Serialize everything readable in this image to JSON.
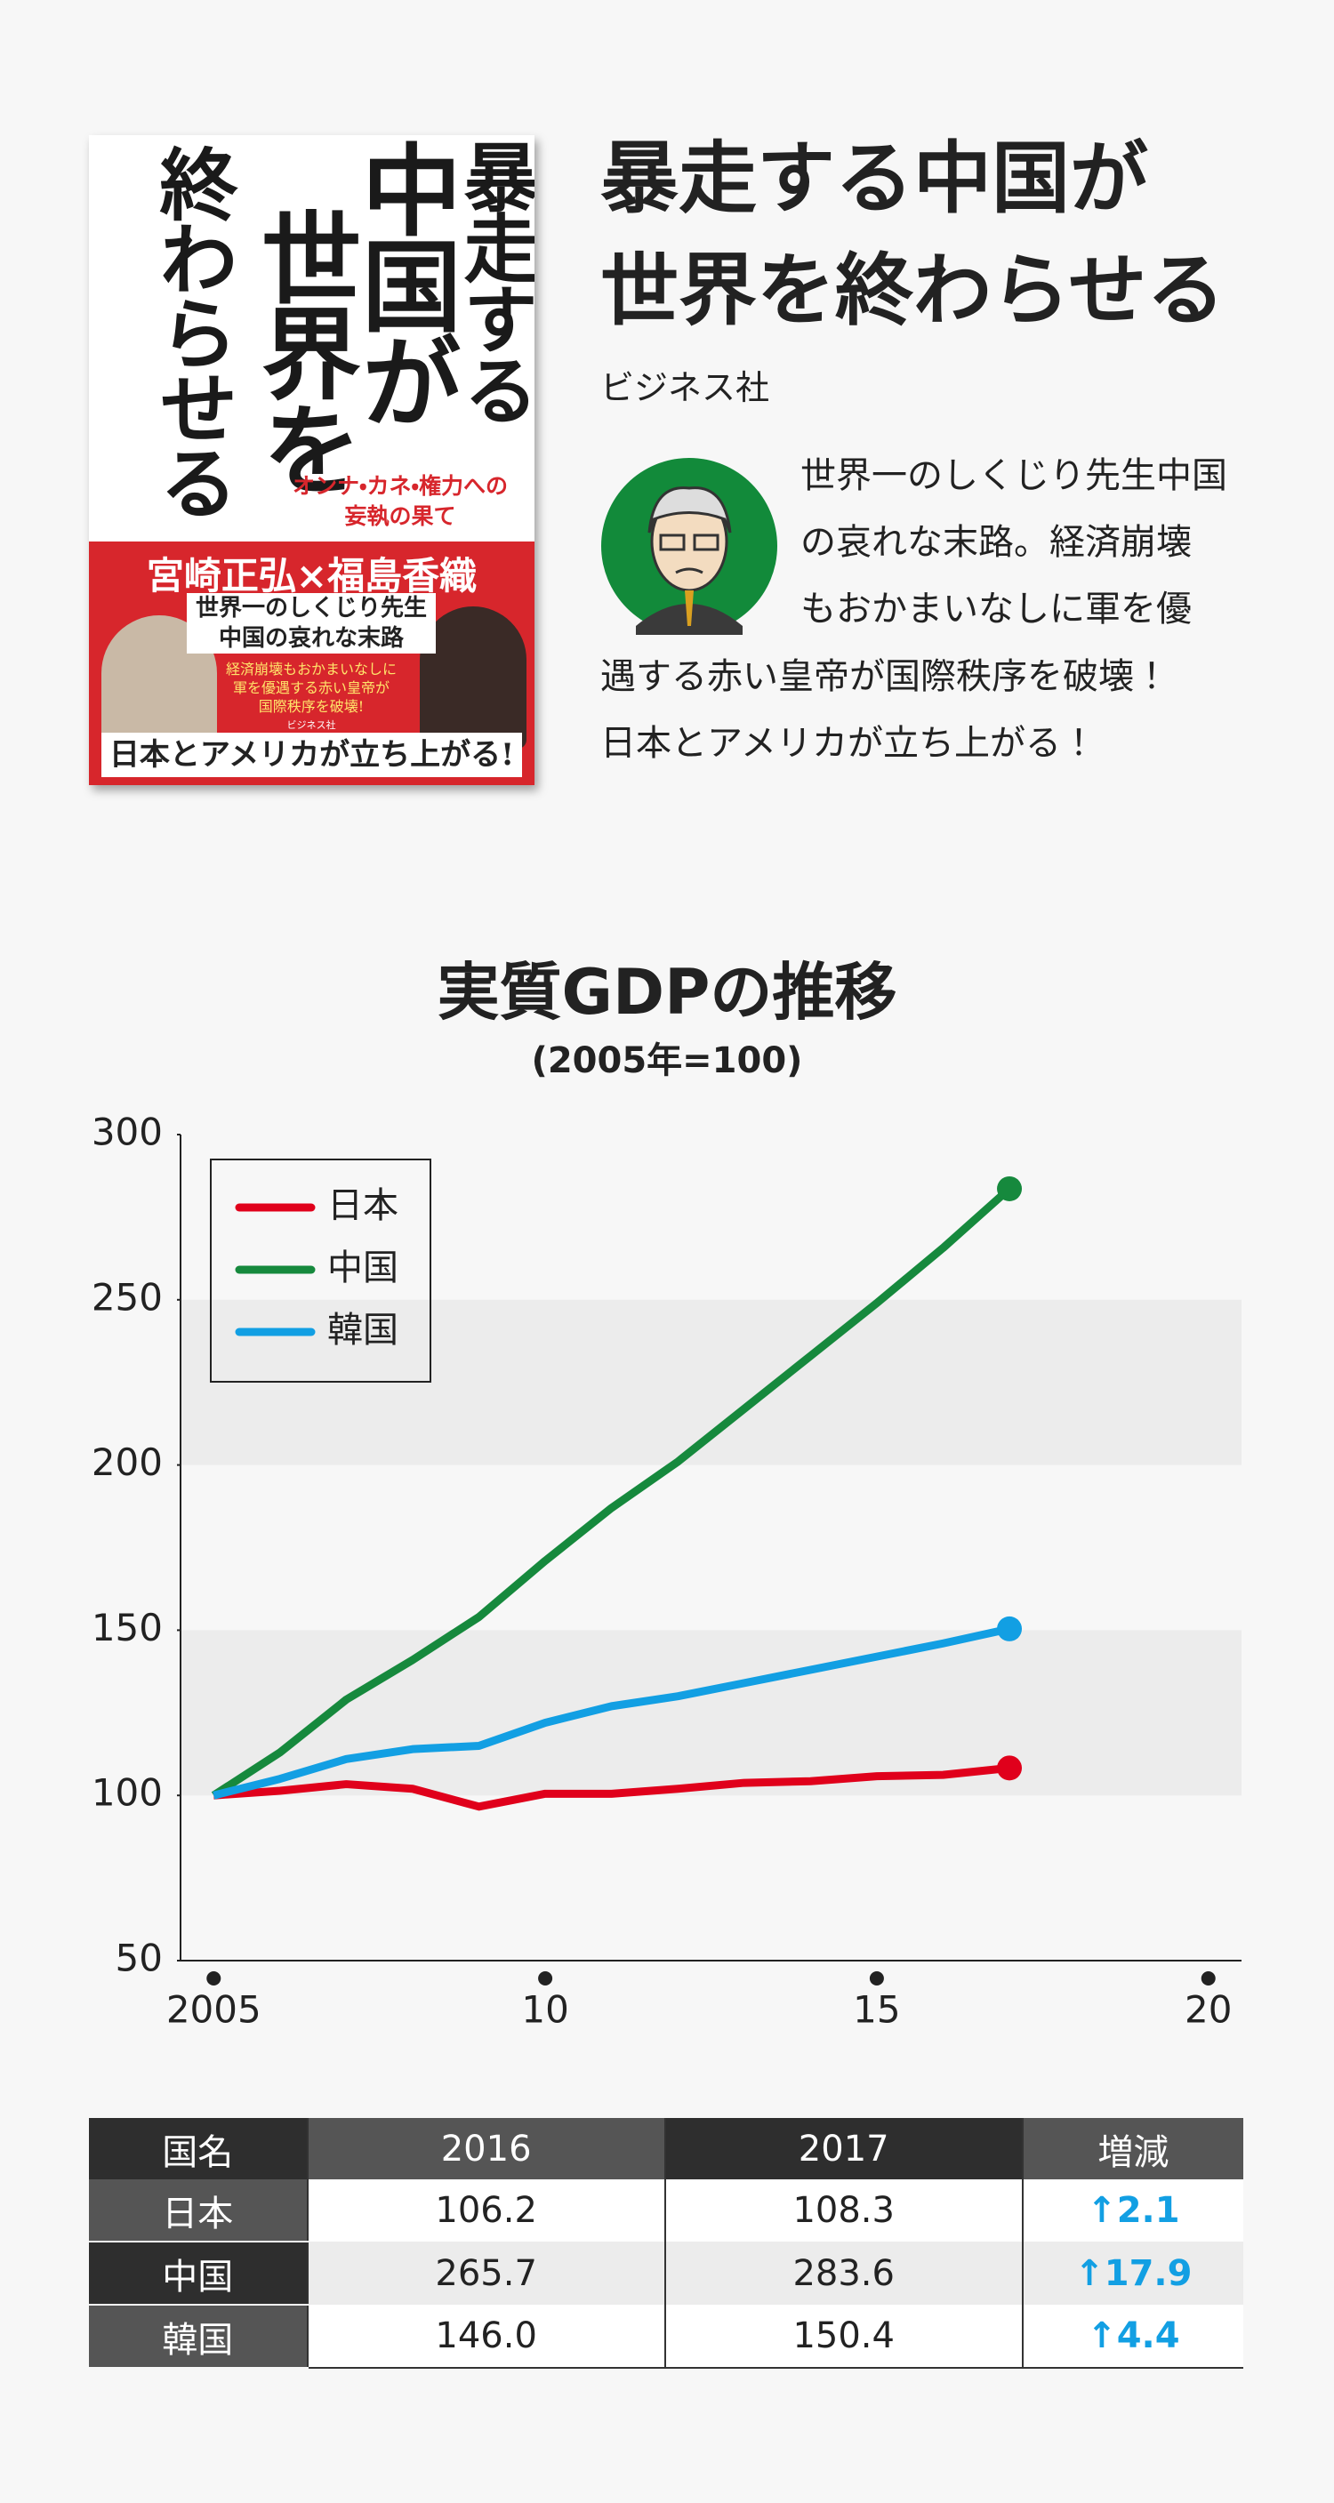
{
  "book": {
    "cover": {
      "title_columns": [
        "暴走する",
        "中国が",
        "世界を",
        "終わらせる"
      ],
      "subtitle_lines": [
        "オンナ・カネ・権力への",
        "妄執の果て"
      ],
      "authors": "宮崎正弘×福島香織",
      "catch_lines": [
        "世界一のしくじり先生",
        "中国の哀れな末路"
      ],
      "blurb_lines": [
        "経済崩壊もおかまいなしに",
        "軍を優遇する赤い皇帝が",
        "国際秩序を破壊!"
      ],
      "publisher": "ビジネス社",
      "banner": "日本とアメリカが立ち上がる!"
    },
    "title_lines": [
      "暴走する中国が",
      "世界を終わらせる"
    ],
    "publisher": "ビジネス社",
    "description_lines": [
      "世界一のしくじり先生中国",
      "の哀れな末路。経済崩壊",
      "もおかまいなしに軍を優",
      "遇する赤い皇帝が国際秩序を破壊！",
      "日本とアメリカが立ち上がる！"
    ]
  },
  "chart_data": {
    "type": "line",
    "title": "実質GDPの推移",
    "subtitle": "(2005年=100)",
    "x": [
      2005,
      2006,
      2007,
      2008,
      2009,
      2010,
      2011,
      2012,
      2013,
      2014,
      2015,
      2016,
      2017
    ],
    "series": [
      {
        "name": "日本",
        "color": "#e0001b",
        "values": [
          100,
          101.4,
          103.4,
          102,
          96.6,
          100.5,
          100.5,
          102,
          103.8,
          104.3,
          105.8,
          106.2,
          108.3
        ]
      },
      {
        "name": "中国",
        "color": "#16893d",
        "values": [
          100,
          113,
          129,
          141,
          154,
          171,
          187,
          201,
          217,
          233,
          249,
          265.7,
          283.6
        ]
      },
      {
        "name": "韓国",
        "color": "#129fe3",
        "values": [
          100,
          105,
          111,
          114,
          115,
          122,
          127,
          130,
          134,
          138,
          142,
          146.0,
          150.4
        ]
      }
    ],
    "xlim": [
      2004.5,
      2020.5
    ],
    "xticks": [
      2005,
      {
        "value": 2010,
        "label": "10"
      },
      {
        "value": 2015,
        "label": "15"
      },
      {
        "value": 2020,
        "label": "20"
      }
    ],
    "ylim": [
      50,
      300
    ],
    "yticks": [
      50,
      100,
      150,
      200,
      250,
      300
    ],
    "legend": "upper left"
  },
  "table": {
    "header": [
      "国名",
      "2016",
      "2017",
      "増減"
    ],
    "rows": [
      [
        "日本",
        "106.2",
        "108.3",
        "↑2.1"
      ],
      [
        "中国",
        "265.7",
        "283.6",
        "↑17.9"
      ],
      [
        "韓国",
        "146.0",
        "150.4",
        "↑4.4"
      ]
    ]
  }
}
